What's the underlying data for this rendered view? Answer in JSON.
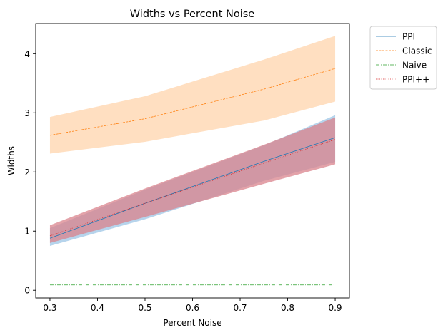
{
  "chart_data": {
    "type": "line",
    "title": "Widths vs Percent Noise",
    "xlabel": "Percent Noise",
    "ylabel": "Widths",
    "xlim": [
      0.27,
      0.93
    ],
    "ylim": [
      -0.13,
      4.51
    ],
    "xticks": [
      0.3,
      0.4,
      0.5,
      0.6,
      0.7,
      0.8,
      0.9
    ],
    "xtick_labels": [
      "0.3",
      "0.4",
      "0.5",
      "0.6",
      "0.7",
      "0.8",
      "0.9"
    ],
    "yticks": [
      0,
      1,
      2,
      3,
      4
    ],
    "ytick_labels": [
      "0",
      "1",
      "2",
      "3",
      "4"
    ],
    "grid": false,
    "legend_position": "outside-top-right",
    "x": [
      0.3,
      0.5,
      0.75,
      0.9
    ],
    "series": [
      {
        "name": "PPI",
        "color": "#1f77b4",
        "dash": "solid",
        "values": [
          0.88,
          1.47,
          2.18,
          2.58
        ],
        "lower": [
          0.75,
          1.2,
          1.85,
          2.17
        ],
        "upper": [
          1.05,
          1.7,
          2.45,
          2.96
        ],
        "band_color": "#9ec6e6"
      },
      {
        "name": "Classic",
        "color": "#ff7f0e",
        "dash": "dashed",
        "values": [
          2.62,
          2.9,
          3.4,
          3.75
        ],
        "lower": [
          2.31,
          2.51,
          2.87,
          3.19
        ],
        "upper": [
          2.93,
          3.28,
          3.9,
          4.3
        ],
        "band_color": "#ffd4ac"
      },
      {
        "name": "Naive",
        "color": "#2ca02c",
        "dash": "dashdot",
        "values": [
          0.09,
          0.09,
          0.09,
          0.09
        ]
      },
      {
        "name": "PPI++",
        "color": "#d62728",
        "dash": "dotted",
        "values": [
          0.92,
          1.47,
          2.15,
          2.55
        ],
        "lower": [
          0.8,
          1.24,
          1.8,
          2.13
        ],
        "upper": [
          1.1,
          1.72,
          2.46,
          2.92
        ],
        "band_color": "#d9838c"
      }
    ]
  }
}
